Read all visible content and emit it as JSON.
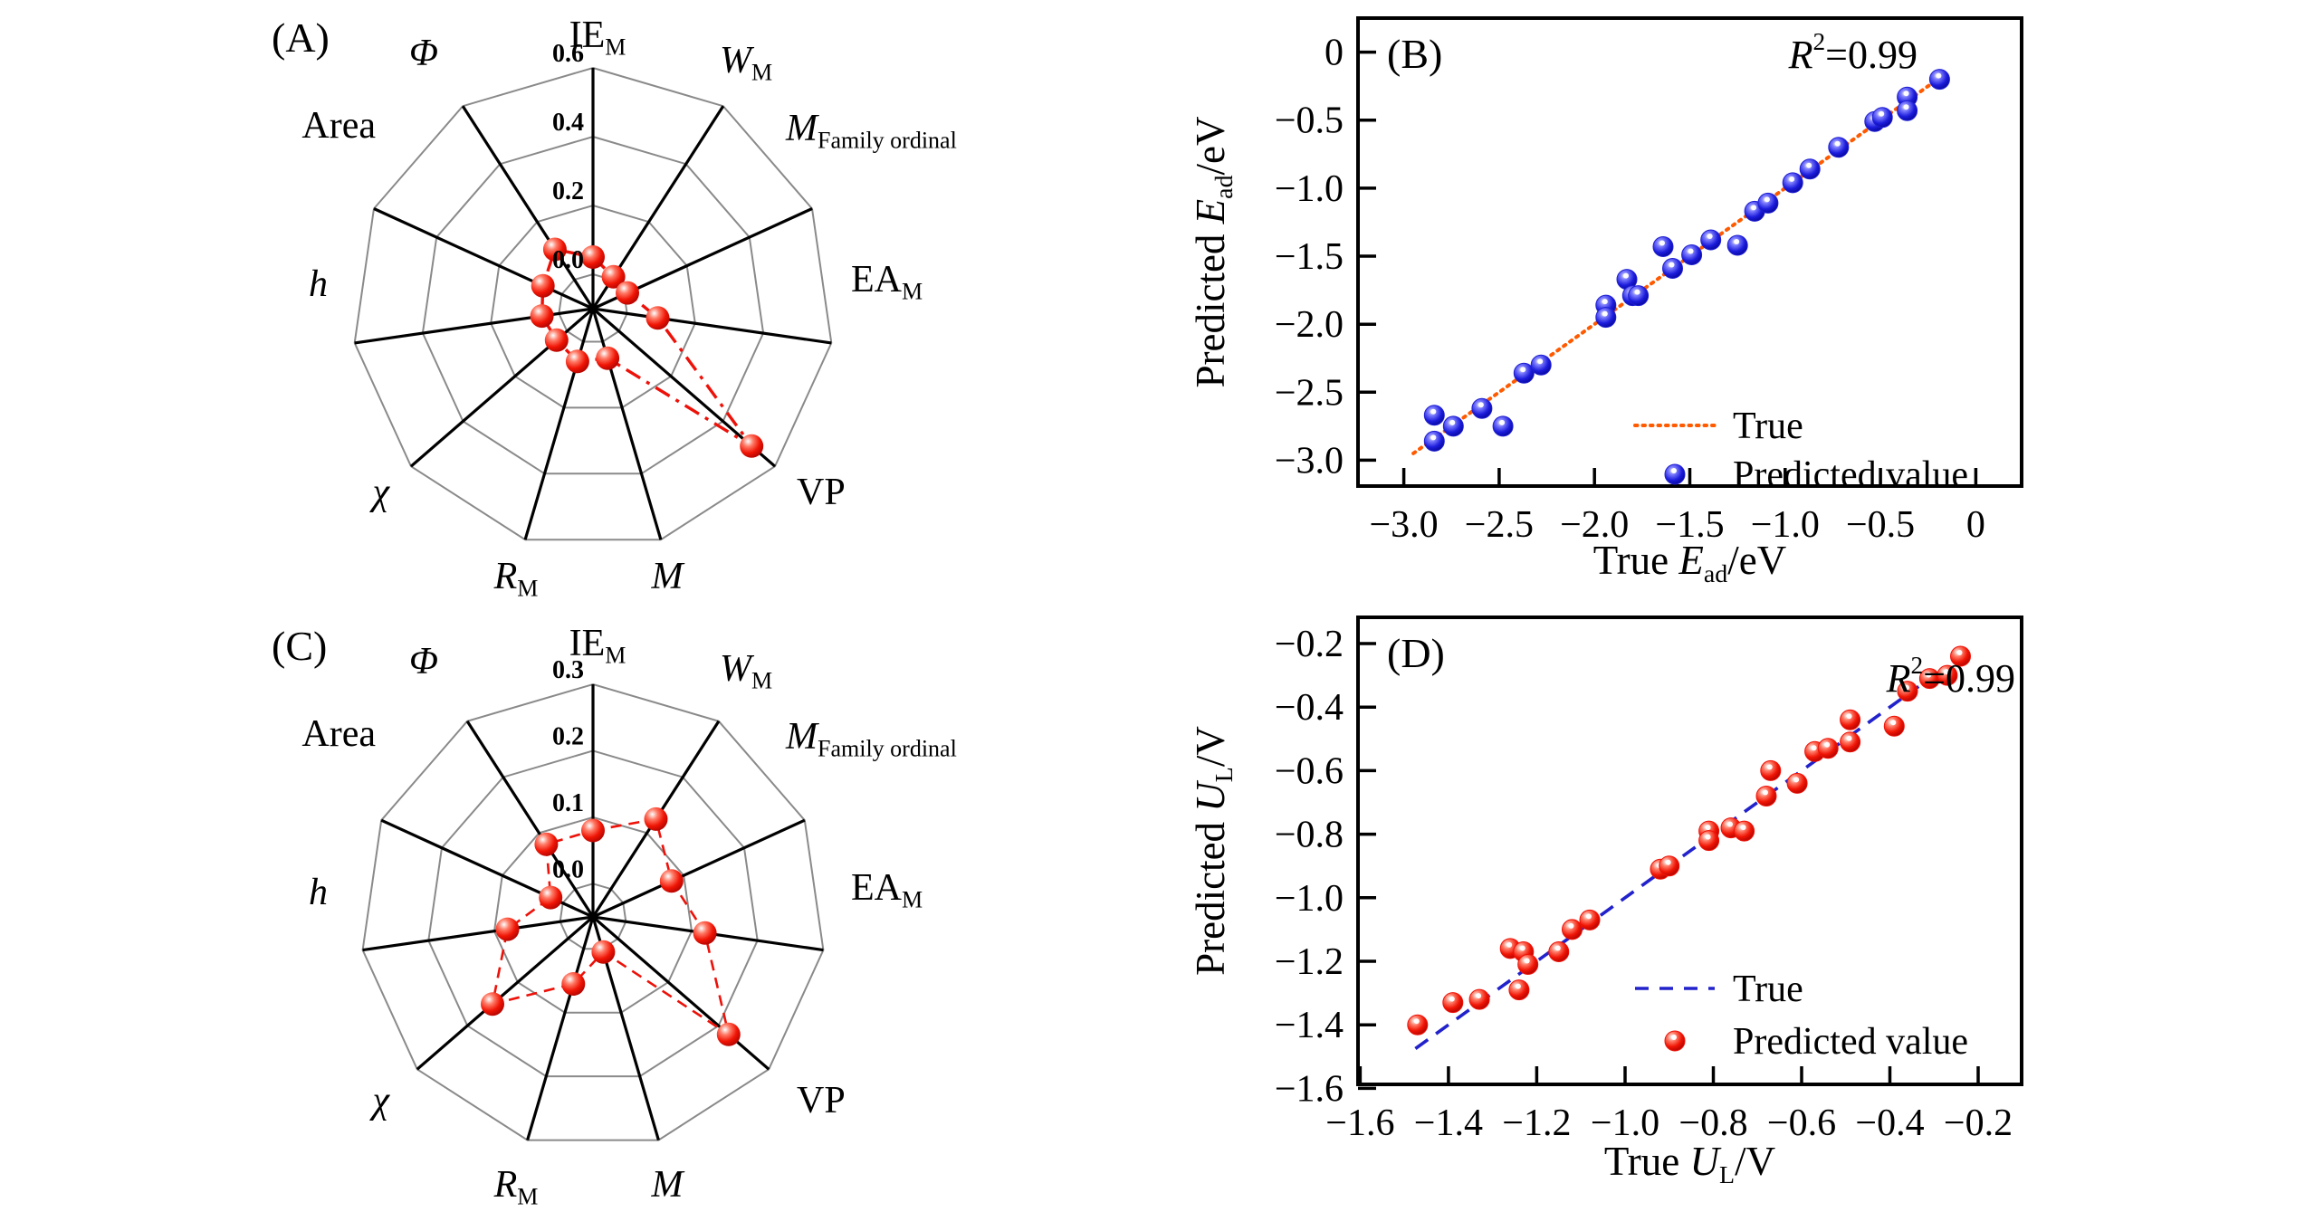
{
  "figure": {
    "background": "#ffffff",
    "description_visible_panels": [
      "(A)",
      "(B)",
      "(C)",
      "(D)"
    ]
  },
  "chart_data": [
    {
      "type": "radar",
      "panel_label": "(A)",
      "categories": [
        [
          [
            "IE",
            ""
          ],
          [
            "M",
            "sub"
          ]
        ],
        [
          [
            "W",
            "i"
          ],
          [
            "M",
            "sub"
          ]
        ],
        [
          [
            "M",
            "i"
          ],
          [
            "Family ordinal",
            "sub"
          ]
        ],
        [
          [
            "EA",
            ""
          ],
          [
            "M",
            "sub"
          ]
        ],
        [
          [
            "VP",
            ""
          ]
        ],
        [
          [
            "M",
            "i"
          ]
        ],
        [
          [
            "R",
            "i"
          ],
          [
            "M",
            "sub"
          ]
        ],
        [
          [
            "χ",
            "i"
          ]
        ],
        [
          [
            "h",
            "i"
          ]
        ],
        [
          [
            "Area",
            ""
          ]
        ],
        [
          [
            "Φ",
            "i"
          ]
        ]
      ],
      "values": [
        0.05,
        0.01,
        0.01,
        0.09,
        0.51,
        0.05,
        0.06,
        0.04,
        0.05,
        0.06,
        0.105
      ],
      "r_min": -0.1,
      "r_max": 0.6,
      "rings": [
        0.0,
        0.2,
        0.4,
        0.6
      ],
      "ring_labels": [
        "0.0",
        "0.2",
        "0.4",
        "0.6"
      ],
      "tick_color": "#1c1ccd",
      "grid_color": "#8a8a8a",
      "spoke_color": "#000000",
      "series_color": "#ed1109",
      "line_style": "dash-dot"
    },
    {
      "type": "scatter",
      "panel_label": "(B)",
      "annotation": [
        [
          "R",
          "i"
        ],
        [
          "2",
          "sup"
        ],
        [
          "=0.99",
          ""
        ]
      ],
      "xlabel": [
        [
          "True ",
          ""
        ],
        [
          "E",
          "i"
        ],
        [
          "ad",
          "sub"
        ],
        [
          "/eV",
          ""
        ]
      ],
      "ylabel": [
        [
          "Predicted ",
          ""
        ],
        [
          "E",
          "i"
        ],
        [
          "ad",
          "sub"
        ],
        [
          "/eV",
          ""
        ]
      ],
      "xlim": [
        -3.24,
        0.24
      ],
      "ylim": [
        -3.19,
        0.25
      ],
      "xticks": [
        -3.0,
        -2.5,
        -2.0,
        -1.5,
        -1.0,
        -0.5,
        0
      ],
      "xtick_labels": [
        "−3.0",
        "−2.5",
        "−2.0",
        "−1.5",
        "−1.0",
        "−0.5",
        "0"
      ],
      "yticks": [
        0,
        -0.5,
        -1.0,
        -1.5,
        -2.0,
        -2.5,
        -3.0
      ],
      "ytick_labels": [
        "0",
        "−0.5",
        "−1.0",
        "−1.5",
        "−2.0",
        "−2.5",
        "−3.0"
      ],
      "line": {
        "label": "True",
        "color": "#ff5a00",
        "style": "dotted",
        "x_start": -2.95,
        "x_end": -0.24
      },
      "marker_color": "#1f1fd2",
      "legend": {
        "line_label": "True",
        "marker_label": "Predicted value"
      },
      "points": [
        [
          -2.84,
          -2.67
        ],
        [
          -2.84,
          -2.86
        ],
        [
          -2.74,
          -2.75
        ],
        [
          -2.59,
          -2.62
        ],
        [
          -2.48,
          -2.75
        ],
        [
          -2.37,
          -2.36
        ],
        [
          -2.28,
          -2.3
        ],
        [
          -1.94,
          -1.86
        ],
        [
          -1.94,
          -1.95
        ],
        [
          -1.83,
          -1.67
        ],
        [
          -1.8,
          -1.79
        ],
        [
          -1.77,
          -1.79
        ],
        [
          -1.64,
          -1.43
        ],
        [
          -1.59,
          -1.59
        ],
        [
          -1.49,
          -1.49
        ],
        [
          -1.39,
          -1.38
        ],
        [
          -1.25,
          -1.42
        ],
        [
          -1.16,
          -1.17
        ],
        [
          -1.09,
          -1.11
        ],
        [
          -0.96,
          -0.96
        ],
        [
          -0.87,
          -0.86
        ],
        [
          -0.72,
          -0.7
        ],
        [
          -0.53,
          -0.51
        ],
        [
          -0.49,
          -0.48
        ],
        [
          -0.36,
          -0.33
        ],
        [
          -0.36,
          -0.43
        ],
        [
          -0.19,
          -0.2
        ]
      ]
    },
    {
      "type": "radar",
      "panel_label": "(C)",
      "categories": [
        [
          [
            "IE",
            ""
          ],
          [
            "M",
            "sub"
          ]
        ],
        [
          [
            "W",
            "i"
          ],
          [
            "M",
            "sub"
          ]
        ],
        [
          [
            "M",
            "i"
          ],
          [
            "Family ordinal",
            "sub"
          ]
        ],
        [
          [
            "EA",
            ""
          ],
          [
            "M",
            "sub"
          ]
        ],
        [
          [
            "VP",
            ""
          ]
        ],
        [
          [
            "M",
            "i"
          ]
        ],
        [
          [
            "R",
            "i"
          ],
          [
            "M",
            "sub"
          ]
        ],
        [
          [
            "χ",
            "i"
          ]
        ],
        [
          [
            "h",
            "i"
          ]
        ],
        [
          [
            "Area",
            ""
          ]
        ],
        [
          [
            "Φ",
            "i"
          ]
        ]
      ],
      "values": [
        0.08,
        0.125,
        0.08,
        0.12,
        0.22,
        0.005,
        0.055,
        0.15,
        0.08,
        0.02,
        0.08
      ],
      "r_min": -0.05,
      "r_max": 0.3,
      "rings": [
        0.0,
        0.1,
        0.2,
        0.3
      ],
      "ring_labels": [
        "0.0",
        "0.1",
        "0.2",
        "0.3"
      ],
      "tick_color": "#1c1ccd",
      "grid_color": "#8a8a8a",
      "spoke_color": "#000000",
      "series_color": "#ed1109",
      "line_style": "dashed"
    },
    {
      "type": "scatter",
      "panel_label": "(D)",
      "annotation": [
        [
          "R",
          "i"
        ],
        [
          "2",
          "sup"
        ],
        [
          "=0.99",
          ""
        ]
      ],
      "xlabel": [
        [
          "True ",
          ""
        ],
        [
          "U",
          "i"
        ],
        [
          "L",
          "sub"
        ],
        [
          "/V",
          ""
        ]
      ],
      "ylabel": [
        [
          "Predicted ",
          ""
        ],
        [
          "U",
          "i"
        ],
        [
          "L",
          "sub"
        ],
        [
          "/V",
          ""
        ]
      ],
      "xlim": [
        -1.605,
        -0.1015
      ],
      "ylim": [
        -1.5875,
        -0.1174
      ],
      "xticks": [
        -1.6,
        -1.4,
        -1.2,
        -1.0,
        -0.8,
        -0.6,
        -0.4,
        -0.2
      ],
      "xtick_labels": [
        "−1.6",
        "−1.4",
        "−1.2",
        "−1.0",
        "−0.8",
        "−0.6",
        "−0.4",
        "−0.2"
      ],
      "yticks": [
        -0.2,
        -0.4,
        -0.6,
        -0.8,
        -1.0,
        -1.2,
        -1.4,
        -1.6
      ],
      "ytick_labels": [
        "−0.2",
        "−0.4",
        "−0.6",
        "−0.8",
        "−1.0",
        "−1.2",
        "−1.4",
        "−1.6"
      ],
      "line": {
        "label": "True",
        "color": "#2222cc",
        "style": "dashed",
        "x_start": -1.475,
        "x_end": -0.335
      },
      "marker_color": "#ee1208",
      "legend": {
        "line_label": "True",
        "marker_label": "Predicted value"
      },
      "points": [
        [
          -1.47,
          -1.4
        ],
        [
          -1.39,
          -1.33
        ],
        [
          -1.33,
          -1.32
        ],
        [
          -1.26,
          -1.16
        ],
        [
          -1.23,
          -1.17
        ],
        [
          -1.22,
          -1.21
        ],
        [
          -1.24,
          -1.29
        ],
        [
          -1.15,
          -1.17
        ],
        [
          -1.12,
          -1.1
        ],
        [
          -1.08,
          -1.07
        ],
        [
          -0.92,
          -0.91
        ],
        [
          -0.9,
          -0.9
        ],
        [
          -0.81,
          -0.79
        ],
        [
          -0.81,
          -0.82
        ],
        [
          -0.76,
          -0.78
        ],
        [
          -0.73,
          -0.79
        ],
        [
          -0.68,
          -0.68
        ],
        [
          -0.67,
          -0.6
        ],
        [
          -0.61,
          -0.64
        ],
        [
          -0.57,
          -0.54
        ],
        [
          -0.54,
          -0.53
        ],
        [
          -0.49,
          -0.44
        ],
        [
          -0.49,
          -0.51
        ],
        [
          -0.39,
          -0.46
        ],
        [
          -0.36,
          -0.35
        ],
        [
          -0.31,
          -0.31
        ],
        [
          -0.27,
          -0.3
        ],
        [
          -0.24,
          -0.24
        ]
      ]
    }
  ]
}
